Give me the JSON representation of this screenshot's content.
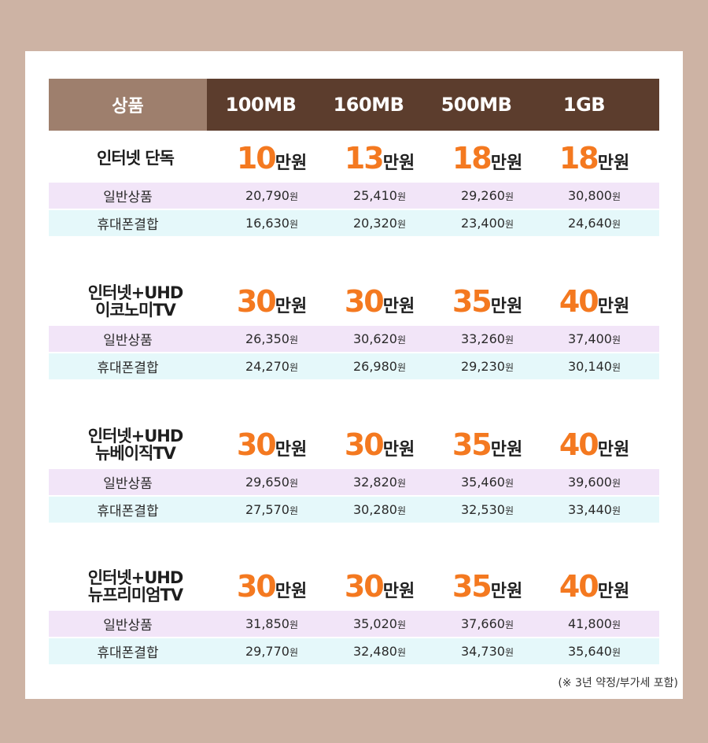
{
  "header": {
    "product_label": "상품",
    "columns": [
      "100MB",
      "160MB",
      "500MB",
      "1GB"
    ]
  },
  "row_labels": {
    "general": "일반상품",
    "mobile": "휴대폰결합"
  },
  "unit_man": "만원",
  "unit_won": "원",
  "groups": [
    {
      "name_line1": "인터넷 단독",
      "name_line2": "",
      "gifts": [
        "10",
        "13",
        "18",
        "18"
      ],
      "general": [
        "20,790",
        "25,410",
        "29,260",
        "30,800"
      ],
      "mobile": [
        "16,630",
        "20,320",
        "23,400",
        "24,640"
      ]
    },
    {
      "name_line1": "인터넷+UHD",
      "name_line2": "이코노미TV",
      "gifts": [
        "30",
        "30",
        "35",
        "40"
      ],
      "general": [
        "26,350",
        "30,620",
        "33,260",
        "37,400"
      ],
      "mobile": [
        "24,270",
        "26,980",
        "29,230",
        "30,140"
      ]
    },
    {
      "name_line1": "인터넷+UHD",
      "name_line2": "뉴베이직TV",
      "gifts": [
        "30",
        "30",
        "35",
        "40"
      ],
      "general": [
        "29,650",
        "32,820",
        "35,460",
        "39,600"
      ],
      "mobile": [
        "27,570",
        "30,280",
        "32,530",
        "33,440"
      ]
    },
    {
      "name_line1": "인터넷+UHD",
      "name_line2": "뉴프리미엄TV",
      "gifts": [
        "30",
        "30",
        "35",
        "40"
      ],
      "general": [
        "31,850",
        "35,020",
        "37,660",
        "41,800"
      ],
      "mobile": [
        "29,770",
        "32,480",
        "34,730",
        "35,640"
      ]
    }
  ],
  "note": "(※ 3년 약정/부가세 포함)",
  "colors": {
    "accent": "#f47920",
    "header_dark": "#5c3d2d",
    "header_light": "#9e7f6d",
    "row_general": "#f2e5f8",
    "row_mobile": "#e5f8fa"
  }
}
